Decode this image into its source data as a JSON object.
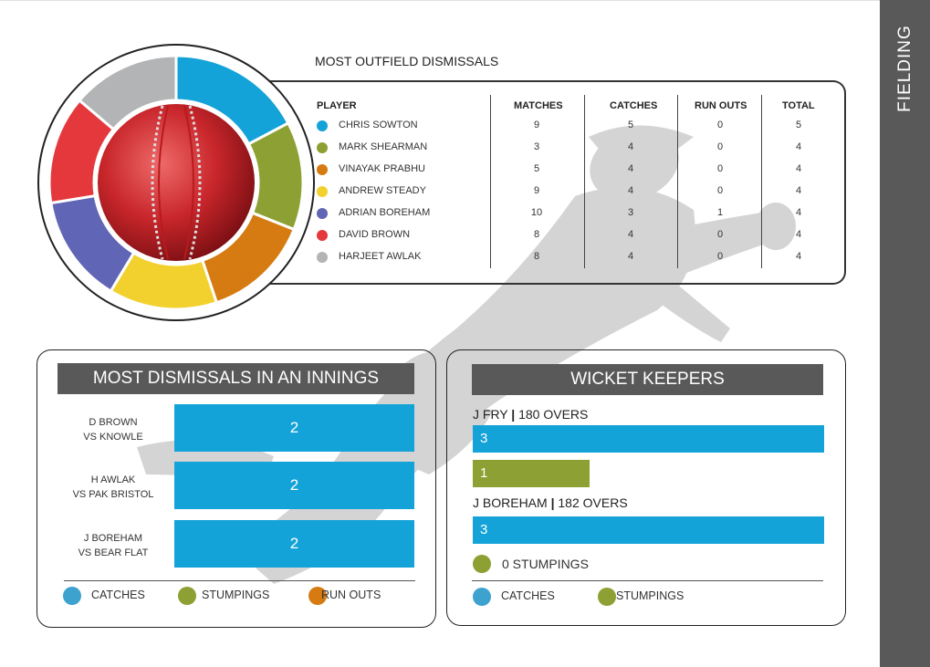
{
  "sidebar": {
    "title": "FIELDING"
  },
  "outfield": {
    "title": "MOST OUTFIELD DISMISSALS",
    "headers": [
      "PLAYER",
      "MATCHES",
      "CATCHES",
      "RUN OUTS",
      "TOTAL"
    ],
    "rows": [
      {
        "player": "CHRIS SOWTON",
        "matches": "9",
        "catches": "5",
        "run_outs": "0",
        "total": "5",
        "color": "#14a3d8"
      },
      {
        "player": "MARK SHEARMAN",
        "matches": "3",
        "catches": "4",
        "run_outs": "0",
        "total": "4",
        "color": "#8da033"
      },
      {
        "player": "VINAYAK PRABHU",
        "matches": "5",
        "catches": "4",
        "run_outs": "0",
        "total": "4",
        "color": "#d57b12"
      },
      {
        "player": "ANDREW STEADY",
        "matches": "9",
        "catches": "4",
        "run_outs": "0",
        "total": "4",
        "color": "#f2d12e"
      },
      {
        "player": "ADRIAN BOREHAM",
        "matches": "10",
        "catches": "3",
        "run_outs": "1",
        "total": "4",
        "color": "#6066b5"
      },
      {
        "player": "DAVID BROWN",
        "matches": "8",
        "catches": "4",
        "run_outs": "0",
        "total": "4",
        "color": "#e5383d"
      },
      {
        "player": "HARJEET AWLAK",
        "matches": "8",
        "catches": "4",
        "run_outs": "0",
        "total": "4",
        "color": "#b3b4b6"
      }
    ]
  },
  "innings": {
    "title": "MOST DISMISSALS IN AN INNINGS",
    "rows": [
      {
        "line1": "D BROWN",
        "line2": "VS KNOWLE",
        "value": "2"
      },
      {
        "line1": "H AWLAK",
        "line2": "VS PAK BRISTOL",
        "value": "2"
      },
      {
        "line1": "J BOREHAM",
        "line2": "VS BEAR FLAT",
        "value": "2"
      }
    ],
    "legend": [
      {
        "label": "CATCHES",
        "color": "#3ea2cf"
      },
      {
        "label": "STUMPINGS",
        "color": "#8da033"
      },
      {
        "label": "RUN OUTS",
        "color": "#d57b12"
      }
    ]
  },
  "keepers": {
    "title": "WICKET KEEPERS",
    "k1": {
      "name": "J FRY",
      "overs": "180 OVERS",
      "catches": "3",
      "stumpings": "1"
    },
    "k2": {
      "name": "J BOREHAM",
      "overs": "182 OVERS",
      "catches": "3",
      "stumpings_text": "0 STUMPINGS"
    },
    "legend": [
      {
        "label": "CATCHES",
        "color": "#3ea2cf"
      },
      {
        "label": "STUMPINGS",
        "color": "#8da033"
      }
    ]
  },
  "chart_data": [
    {
      "type": "pie",
      "title": "",
      "labels": [
        "CHRIS SOWTON",
        "MARK SHEARMAN",
        "VINAYAK PRABHU",
        "ANDREW STEADY",
        "ADRIAN BOREHAM",
        "DAVID BROWN",
        "HARJEET AWLAK"
      ],
      "values": [
        5,
        4,
        4,
        4,
        4,
        4,
        4
      ],
      "colors": [
        "#14a3d8",
        "#8da033",
        "#d57b12",
        "#f2d12e",
        "#6066b5",
        "#e5383d",
        "#b3b4b6"
      ]
    },
    {
      "type": "bar",
      "title": "MOST DISMISSALS IN AN INNINGS",
      "categories": [
        "D BROWN VS KNOWLE",
        "H AWLAK VS PAK BRISTOL",
        "J BOREHAM VS BEAR FLAT"
      ],
      "series": [
        {
          "name": "CATCHES",
          "values": [
            2,
            2,
            2
          ]
        }
      ],
      "xlim": [
        0,
        2
      ]
    },
    {
      "type": "bar",
      "title": "WICKET KEEPERS",
      "categories": [
        "J FRY",
        "J BOREHAM"
      ],
      "series": [
        {
          "name": "CATCHES",
          "values": [
            3,
            3
          ]
        },
        {
          "name": "STUMPINGS",
          "values": [
            1,
            0
          ]
        }
      ],
      "xlim": [
        0,
        3
      ]
    }
  ]
}
